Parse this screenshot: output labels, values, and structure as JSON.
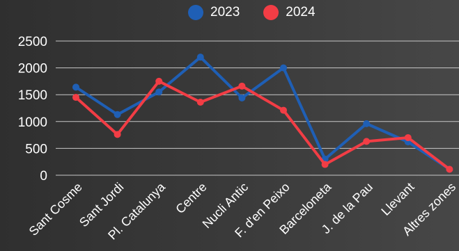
{
  "chart_data": {
    "type": "line",
    "categories": [
      "Sant Cosme",
      "Sant Jordi",
      "Pl. Catalunya",
      "Centre",
      "Nucli Antic",
      "F. d'en Peixo",
      "Barceloneta",
      "J. de la Pau",
      "Llevant",
      "Altres zones"
    ],
    "series": [
      {
        "name": "2023",
        "color": "#1f5fb5",
        "values": [
          1640,
          1130,
          1550,
          2200,
          1440,
          2000,
          300,
          960,
          620,
          110
        ]
      },
      {
        "name": "2024",
        "color": "#f23d45",
        "values": [
          1450,
          760,
          1750,
          1360,
          1660,
          1210,
          200,
          630,
          700,
          110
        ]
      }
    ],
    "yticks": [
      0,
      500,
      1000,
      1500,
      2000,
      2500
    ],
    "ylim": [
      0,
      2500
    ],
    "grid": true,
    "legend_position": "top",
    "title": "",
    "xlabel": "",
    "ylabel": ""
  }
}
